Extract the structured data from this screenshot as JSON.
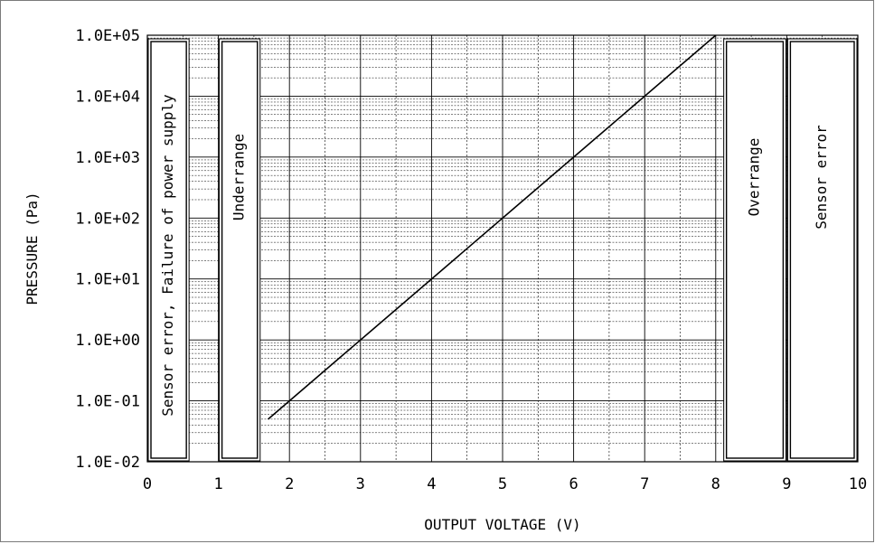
{
  "chart_data": {
    "type": "line",
    "title": "",
    "xlabel": "OUTPUT VOLTAGE (V)",
    "ylabel": "PRESSURE (Pa)",
    "xlim": [
      0,
      10
    ],
    "ylim": [
      0.01,
      100000
    ],
    "yscale": "log",
    "grid": true,
    "x_ticks": [
      "0",
      "1",
      "2",
      "3",
      "4",
      "5",
      "6",
      "7",
      "8",
      "9",
      "10"
    ],
    "y_ticks": [
      "1.0E-02",
      "1.0E-01",
      "1.0E+00",
      "1.0E+01",
      "1.0E+02",
      "1.0E+03",
      "1.0E+04",
      "1.0E+05"
    ],
    "series": [
      {
        "x": [
          1.7,
          8.0
        ],
        "y": [
          0.05,
          100000
        ]
      }
    ],
    "regions": [
      {
        "label": "Sensor error, Failure of power supply",
        "x": [
          0.0,
          0.6
        ]
      },
      {
        "label": "Underrange",
        "x": [
          1.0,
          1.6
        ]
      },
      {
        "label": "Overrange",
        "x": [
          8.1,
          9.0
        ]
      },
      {
        "label": "Sensor error",
        "x": [
          9.0,
          10.0
        ]
      }
    ],
    "colors": {
      "line": "#000000",
      "grid": "#000000",
      "region_fill": "#ffffff"
    }
  }
}
